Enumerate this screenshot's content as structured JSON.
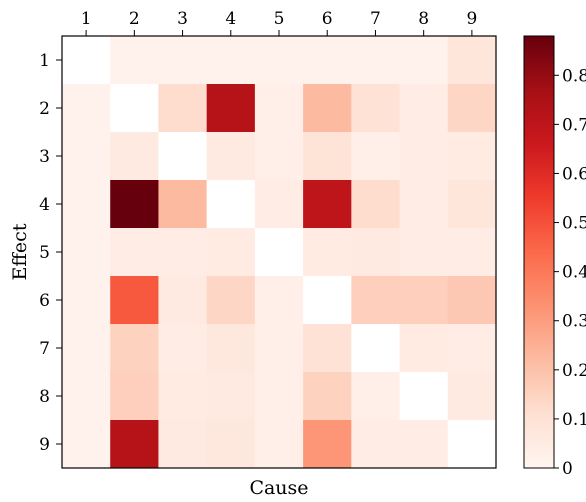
{
  "chart_data": {
    "type": "heatmap",
    "title": "",
    "xlabel": "Cause",
    "ylabel": "Effect",
    "x_categories": [
      "1",
      "2",
      "3",
      "4",
      "5",
      "6",
      "7",
      "8",
      "9"
    ],
    "y_categories": [
      "1",
      "2",
      "3",
      "4",
      "5",
      "6",
      "7",
      "8",
      "9"
    ],
    "x_axis_position": "top",
    "colormap": "Reds",
    "colorbar": {
      "min": 0,
      "max": 0.88,
      "ticks": [
        "0",
        "0.1",
        "0.2",
        "0.3",
        "0.4",
        "0.5",
        "0.6",
        "0.7",
        "0.8"
      ]
    },
    "values": [
      [
        0.0,
        0.02,
        0.02,
        0.02,
        0.02,
        0.02,
        0.02,
        0.02,
        0.08
      ],
      [
        0.02,
        0.0,
        0.12,
        0.72,
        0.03,
        0.22,
        0.1,
        0.04,
        0.14
      ],
      [
        0.02,
        0.06,
        0.0,
        0.06,
        0.03,
        0.09,
        0.03,
        0.04,
        0.05
      ],
      [
        0.02,
        0.88,
        0.22,
        0.0,
        0.04,
        0.7,
        0.12,
        0.04,
        0.08
      ],
      [
        0.02,
        0.04,
        0.04,
        0.05,
        0.0,
        0.05,
        0.06,
        0.04,
        0.04
      ],
      [
        0.02,
        0.48,
        0.06,
        0.14,
        0.03,
        0.0,
        0.16,
        0.16,
        0.18
      ],
      [
        0.02,
        0.15,
        0.04,
        0.07,
        0.03,
        0.1,
        0.0,
        0.05,
        0.04
      ],
      [
        0.02,
        0.16,
        0.05,
        0.06,
        0.03,
        0.15,
        0.03,
        0.0,
        0.06
      ],
      [
        0.02,
        0.72,
        0.06,
        0.07,
        0.03,
        0.32,
        0.04,
        0.04,
        0.0
      ]
    ]
  }
}
